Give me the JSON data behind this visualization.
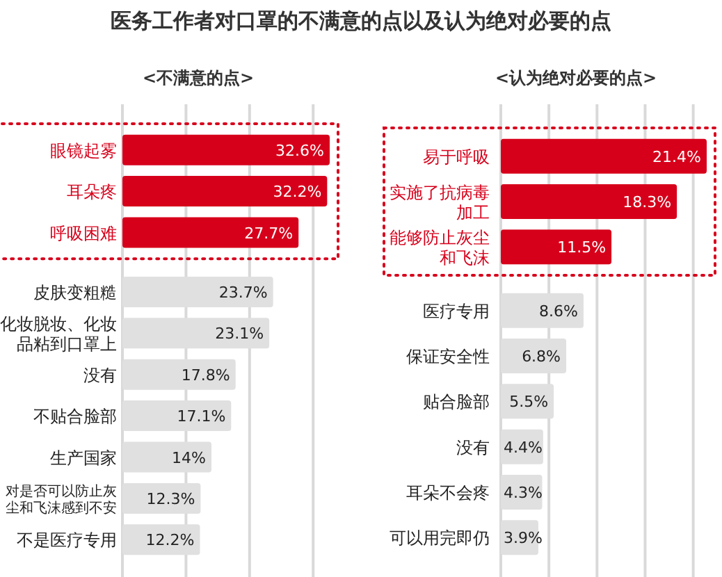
{
  "chart_data": [
    {
      "type": "bar",
      "orientation": "horizontal",
      "title": "医务工作者对口罩的不满意的点以及认为绝对必要的点",
      "subtitle": "<不满意的点>",
      "categories": [
        "眼镜起雾",
        "耳朵疼",
        "呼吸困难",
        "皮肤变粗糙",
        "化妆脱妆、化妆品粘到口罩上",
        "没有",
        "不贴合脸部",
        "生产国家",
        "对是否可以防止灰尘和飞沫感到不安",
        "不是医疗专用"
      ],
      "values": [
        32.6,
        32.2,
        27.7,
        23.7,
        23.1,
        17.8,
        17.1,
        14,
        12.3,
        12.2
      ],
      "colors": [
        "#d7001b",
        "#d7001b",
        "#d7001b",
        "#e0e0e0",
        "#e0e0e0",
        "#e0e0e0",
        "#e0e0e0",
        "#e0e0e0",
        "#e0e0e0",
        "#e0e0e0"
      ],
      "value_labels": [
        "32.6%",
        "32.2%",
        "27.7%",
        "23.7%",
        "23.1%",
        "17.8%",
        "17.1%",
        "14%",
        "12.3%",
        "12.2%"
      ],
      "xticks": [
        {
          "value": 0,
          "label": null
        },
        {
          "value": 10,
          "label": null
        },
        {
          "value": 20,
          "label": null
        },
        {
          "value": 30,
          "label": null
        }
      ],
      "grid": "x",
      "tick_labels": "y"
    },
    {
      "type": "bar",
      "orientation": "horizontal",
      "subtitle": "<认为绝对必要的点>",
      "categories": [
        "易于呼吸",
        "实施了抗病毒加工",
        "能够防止灰尘和飞沫",
        "医疗专用",
        "保证安全性",
        "贴合脸部",
        "没有",
        "耳朵不会疼",
        "可以用完即仍"
      ],
      "values": [
        21.4,
        18.3,
        11.5,
        8.6,
        6.8,
        5.5,
        4.4,
        4.3,
        3.9
      ],
      "colors": [
        "#d7001b",
        "#d7001b",
        "#d7001b",
        "#e0e0e0",
        "#e0e0e0",
        "#e0e0e0",
        "#e0e0e0",
        "#e0e0e0",
        "#e0e0e0"
      ],
      "value_labels": [
        "21.4%",
        "18.3%",
        "11.5%",
        "8.6%",
        "6.8%",
        "5.5%",
        "4.4%",
        "4.3%",
        "3.9%"
      ],
      "xticks": [
        {
          "value": 0,
          "label": null
        },
        {
          "value": 5,
          "label": null
        },
        {
          "value": 10,
          "label": null
        },
        {
          "value": 15,
          "label": null
        },
        {
          "value": 20,
          "label": null
        }
      ],
      "grid": "x",
      "tick_labels": "y"
    }
  ]
}
